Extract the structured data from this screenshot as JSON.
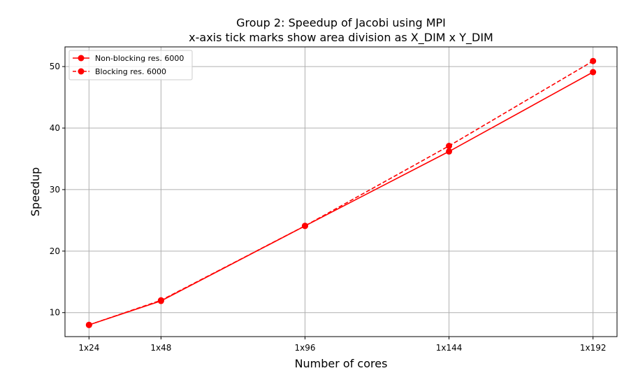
{
  "chart_data": {
    "type": "line",
    "title": "Group 2: Speedup of Jacobi using MPI",
    "subtitle": "x-axis tick marks show area division as X_DIM x Y_DIM",
    "xlabel": "Number of cores",
    "ylabel": "Speedup",
    "x": [
      24,
      48,
      96,
      144,
      192
    ],
    "categories": [
      "1x24",
      "1x48",
      "1x96",
      "1x144",
      "1x192"
    ],
    "xlim": [
      16,
      200
    ],
    "ylim": [
      6.1,
      53.2
    ],
    "yticks": [
      10,
      20,
      30,
      40,
      50
    ],
    "grid": true,
    "legend_position": "top-left",
    "series": [
      {
        "name": "Non-blocking res. 6000",
        "color": "#ff0000",
        "linestyle": "solid",
        "marker": "circle",
        "values": [
          8.0,
          11.9,
          24.1,
          36.2,
          49.1
        ]
      },
      {
        "name": "Blocking res. 6000",
        "color": "#ff0000",
        "linestyle": "dashed",
        "marker": "circle",
        "values": [
          8.0,
          12.0,
          24.1,
          37.1,
          50.9
        ]
      }
    ]
  }
}
